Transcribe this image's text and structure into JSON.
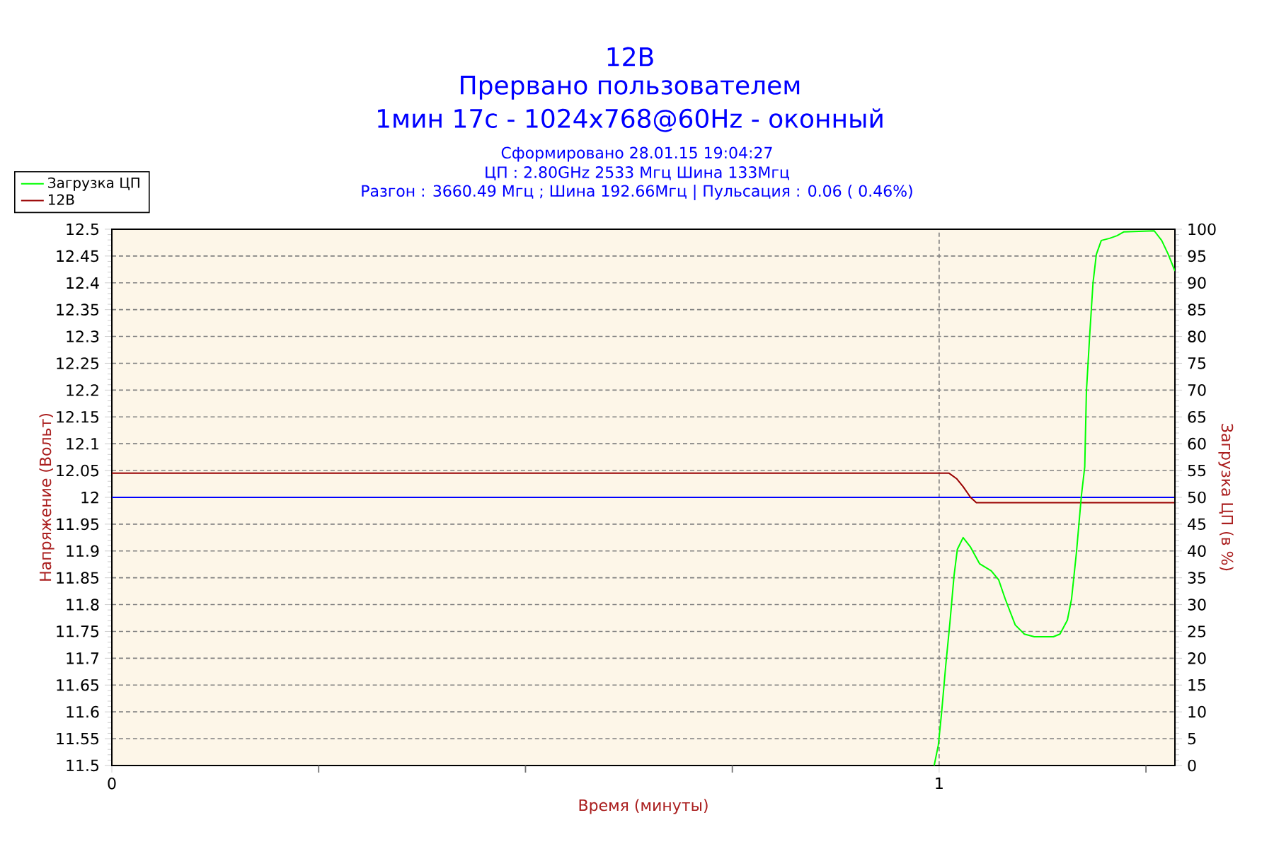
{
  "chart_data": {
    "type": "line",
    "title": "12В",
    "subtitle": "Прервано пользователем",
    "annotations": [
      "1мин 17с - 1024x768@60Hz - оконный",
      "Сформировано 28.01.15 19:04:27",
      "ЦП : 2.80GHz 2533 Мгц Шина 133Мгц",
      "Разгон : 3660.49 Мгц ; Шина 192.66Мгц | Пульсация : 0.06 ( 0.46%)"
    ],
    "xlabel": "Время (минуты)",
    "ylabel": "Напряжение (Вольт)",
    "y2label": "Загрузка ЦП (в %)",
    "xlim": [
      0,
      1.285
    ],
    "xticks": [
      0,
      {
        "value": 0.25,
        "label": null
      },
      {
        "value": 0.5,
        "label": null
      },
      {
        "value": 0.75,
        "label": null
      },
      1,
      {
        "value": 1.25,
        "label": null
      }
    ],
    "ylim": [
      11.5,
      12.5
    ],
    "yticks": [
      11.5,
      11.55,
      11.6,
      11.65,
      11.7,
      11.75,
      11.8,
      11.85,
      11.9,
      11.95,
      12,
      12.05,
      12.1,
      12.15,
      12.2,
      12.25,
      12.3,
      12.35,
      12.4,
      12.45,
      12.5
    ],
    "y2lim": [
      0,
      100
    ],
    "y2ticks": [
      0,
      5,
      10,
      15,
      20,
      25,
      30,
      35,
      40,
      45,
      50,
      55,
      60,
      65,
      70,
      75,
      80,
      85,
      90,
      95,
      100
    ],
    "series": [
      {
        "name": "Загрузка ЦП",
        "color": "#00ff00",
        "axis": "y2",
        "x": [
          0.994,
          0.999,
          1.003,
          1.008,
          1.013,
          1.018,
          1.022,
          1.029,
          1.038,
          1.049,
          1.063,
          1.072,
          1.08,
          1.092,
          1.103,
          1.115,
          1.138,
          1.146,
          1.155,
          1.16,
          1.166,
          1.172,
          1.176,
          1.178,
          1.182,
          1.186,
          1.19,
          1.196,
          1.206,
          1.215,
          1.223,
          1.26,
          1.269,
          1.277,
          1.285
        ],
        "values": [
          0,
          3.8,
          9.9,
          18.7,
          26.6,
          35.4,
          40.3,
          42.5,
          40.7,
          37.6,
          36.3,
          34.6,
          31.0,
          26.2,
          24.5,
          24.0,
          24.0,
          24.5,
          27.1,
          31.0,
          39.8,
          50.4,
          55.7,
          69.7,
          80.3,
          90.0,
          95.3,
          97.9,
          98.3,
          98.8,
          99.5,
          99.7,
          97.9,
          95.3,
          92.2
        ]
      },
      {
        "name": "12В",
        "color": "#990000",
        "x": [
          0,
          1.012,
          1.021,
          1.029,
          1.038,
          1.045,
          1.285
        ],
        "values": [
          12.045,
          12.045,
          12.035,
          12.02,
          12.0,
          11.99,
          11.99
        ]
      }
    ],
    "ref_lines": [
      {
        "axis": "y",
        "value": 12,
        "color": "#0000ff"
      }
    ],
    "grid": true,
    "legend": "top left",
    "marker": "none"
  }
}
